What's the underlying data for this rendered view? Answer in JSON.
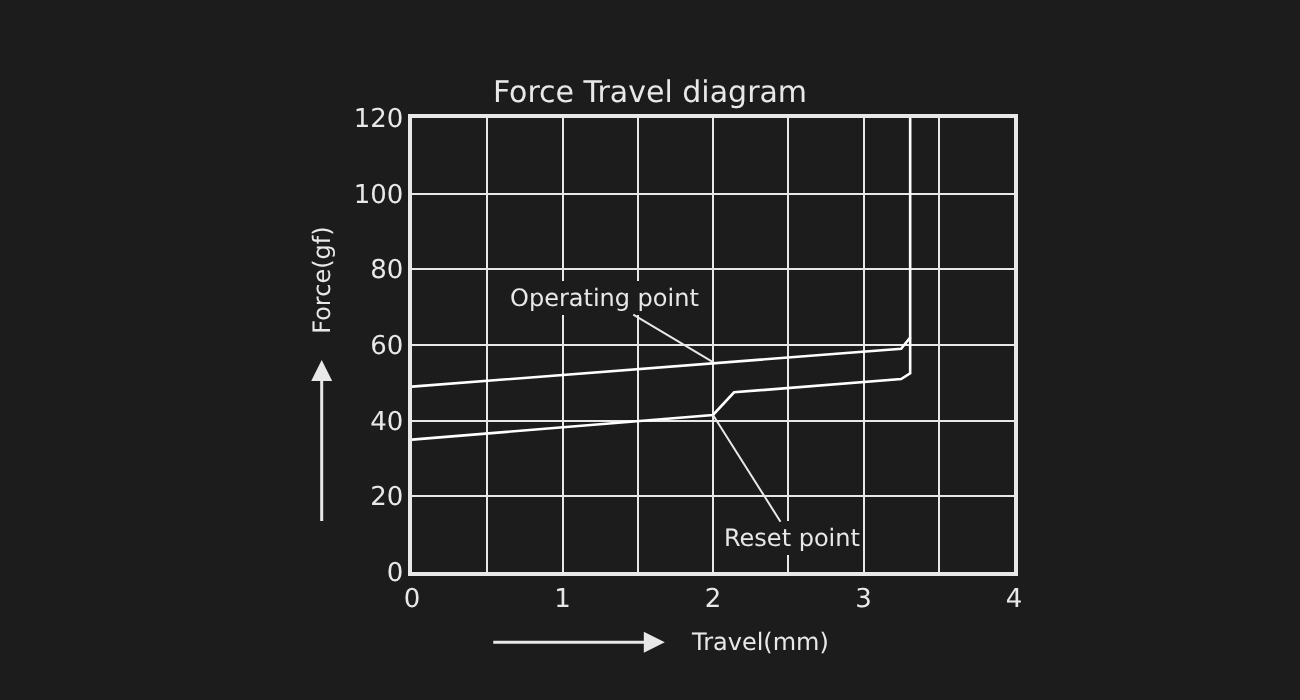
{
  "chart_data": {
    "type": "line",
    "title": "Force Travel diagram",
    "xlabel": "Travel(mm)",
    "ylabel": "Force(gf)",
    "series": [
      {
        "color": "#ffffff",
        "x": [
          0,
          3.25,
          3.31,
          3.31
        ],
        "values": [
          49,
          59,
          62,
          120
        ]
      },
      {
        "color": "#ffffff",
        "x": [
          3.31,
          3.31,
          3.25,
          2.14,
          2.0,
          0
        ],
        "values": [
          62,
          52.5,
          51,
          47.5,
          41.5,
          35
        ]
      }
    ],
    "xlim": [
      0,
      4
    ],
    "ylim": [
      0,
      120
    ],
    "xticks": [
      0,
      {
        "value": 0.5,
        "label": null
      },
      1,
      {
        "value": 1.5,
        "label": null
      },
      2,
      {
        "value": 2.5,
        "label": null
      },
      3,
      {
        "value": 3.5,
        "label": null
      },
      4
    ],
    "yticks": [
      0,
      20,
      40,
      60,
      80,
      100,
      120
    ],
    "grid": true,
    "marker": "none",
    "line_style": "solid",
    "annotations": [
      {
        "text": "Operating point",
        "x": 2.0,
        "y": 55.5
      },
      {
        "text": "Reset point",
        "x": 2.0,
        "y": 41.5
      }
    ]
  }
}
